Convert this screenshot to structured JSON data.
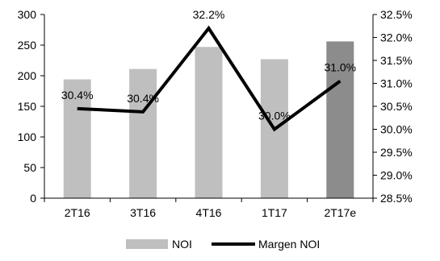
{
  "chart_data": {
    "type": "bar",
    "categories": [
      "2T16",
      "3T16",
      "4T16",
      "1T17",
      "2T17e"
    ],
    "series": [
      {
        "name": "NOI",
        "type": "bar",
        "axis": "left",
        "values": [
          194,
          211,
          247,
          227,
          256
        ],
        "color": "#bfbfbf",
        "highlight": {
          "index": 4,
          "color": "#8c8c8c"
        }
      },
      {
        "name": "Margen NOI",
        "type": "line",
        "axis": "right",
        "values": [
          30.45,
          30.38,
          32.2,
          30.0,
          31.05
        ],
        "data_labels": [
          "30.4%",
          "30.4%",
          "32.2%",
          "30.0%",
          "31.0%"
        ],
        "color": "#000000"
      }
    ],
    "y_left": {
      "min": 0,
      "max": 300,
      "ticks": [
        "0",
        "50",
        "100",
        "150",
        "200",
        "250",
        "300"
      ]
    },
    "y_right": {
      "min": 28.5,
      "max": 32.5,
      "ticks": [
        "28.5%",
        "29.0%",
        "29.5%",
        "30.0%",
        "30.5%",
        "31.0%",
        "31.5%",
        "32.0%",
        "32.5%"
      ]
    },
    "title": "",
    "xlabel": "",
    "ylabel": "",
    "grid": false,
    "legend": "bottom"
  }
}
